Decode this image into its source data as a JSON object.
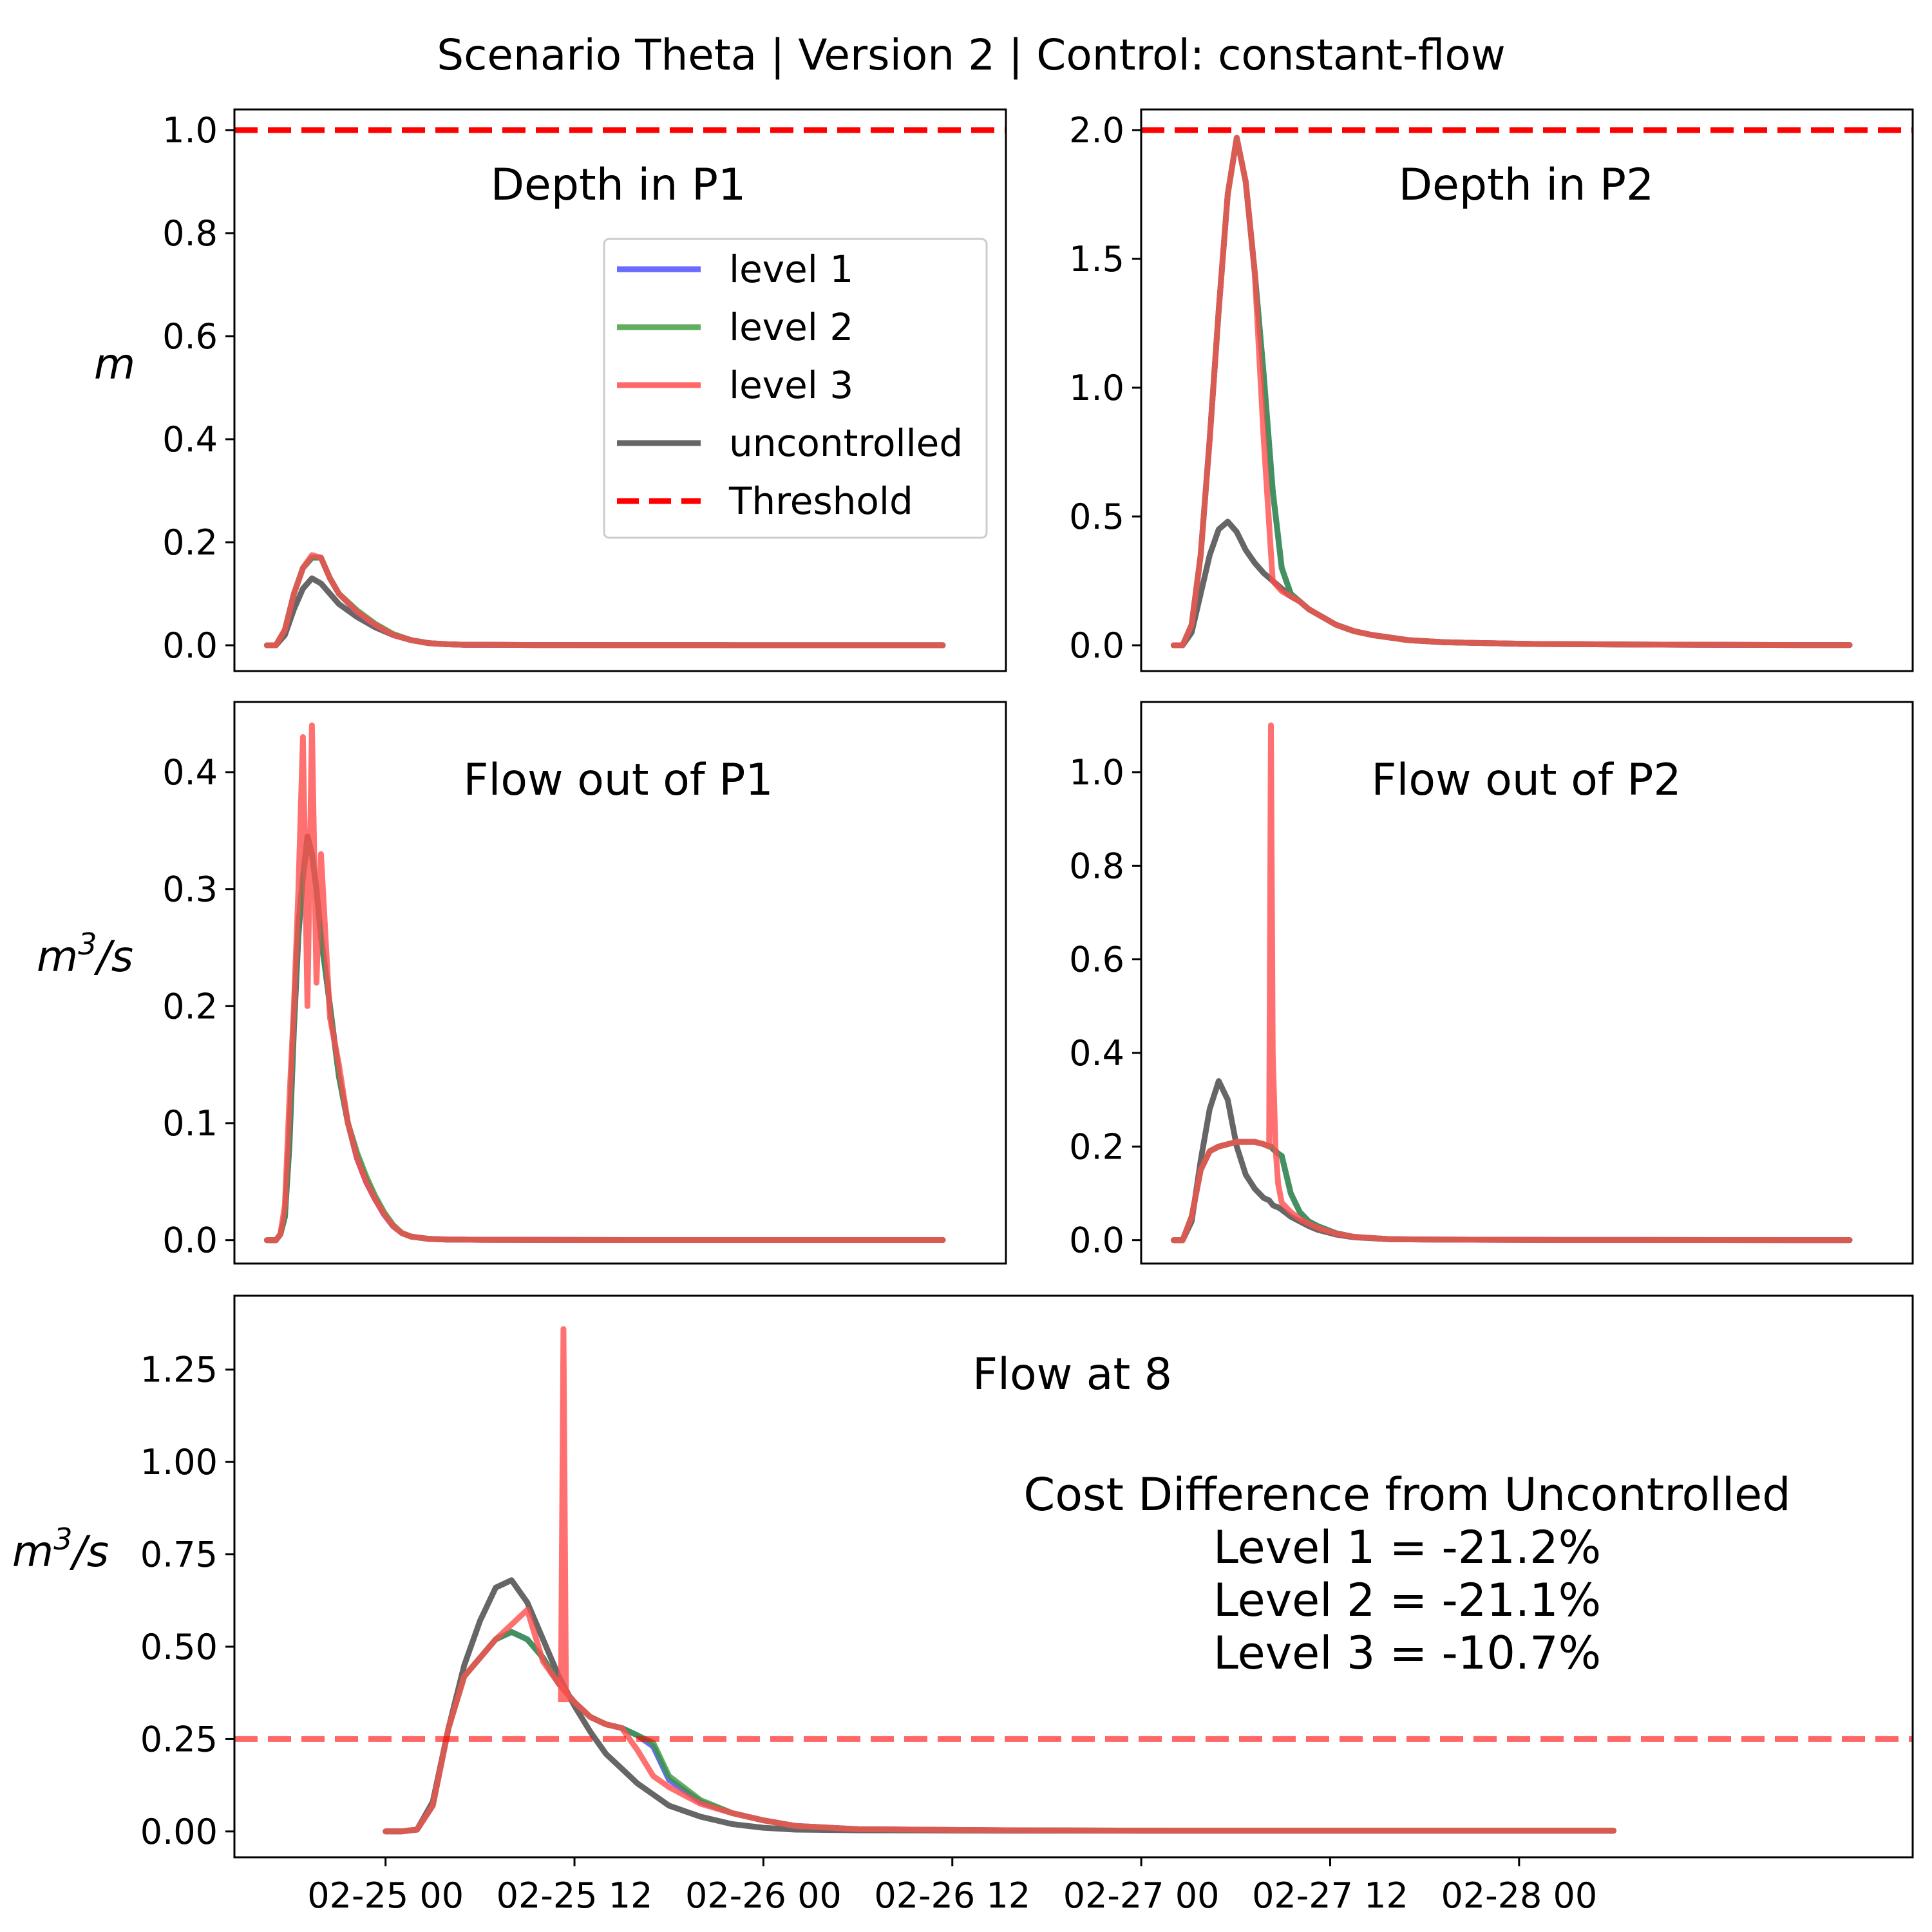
{
  "suptitle": "Scenario Theta | Version 2 | Control: constant-flow",
  "colors": {
    "level1": "#5b5bff",
    "level2": "#3a9a3a",
    "level3": "#ff4d4d",
    "uncontrolled": "#555555",
    "threshold": "#ff0000",
    "overlap_dark": "#8b1a1a"
  },
  "legend": {
    "placement": "upper-right of Depth in P1 panel",
    "entries": [
      "level 1",
      "level 2",
      "level 3",
      "uncontrolled",
      "Threshold"
    ]
  },
  "cost_text": {
    "header": "Cost Difference from Uncontrolled",
    "lines": [
      "Level 1 = -21.2%",
      "Level 2 = -21.1%",
      "Level 3 = -10.7%"
    ]
  },
  "chart_data": [
    {
      "id": "p1depth",
      "type": "line",
      "title": "Depth in P1",
      "ylabel": "m",
      "xlim_hours": [
        -3.6,
        82
      ],
      "ylim": [
        -0.05,
        1.04
      ],
      "yticks": [
        0.0,
        0.2,
        0.4,
        0.6,
        0.8,
        1.0
      ],
      "ytick_labels": [
        "0.0",
        "0.2",
        "0.4",
        "0.6",
        "0.8",
        "1.0"
      ],
      "threshold": 1.0,
      "x_hours": [
        0,
        1,
        2,
        3,
        4,
        5,
        6,
        7,
        8,
        10,
        12,
        14,
        16,
        18,
        20,
        22,
        24,
        30,
        40,
        50,
        60,
        70,
        75
      ],
      "series": [
        {
          "name": "uncontrolled",
          "values": [
            0,
            0,
            0.02,
            0.07,
            0.11,
            0.13,
            0.12,
            0.1,
            0.08,
            0.055,
            0.035,
            0.02,
            0.01,
            0.004,
            0.002,
            0.001,
            0.001,
            0.0005,
            0.0003,
            0.0002,
            0.0001,
            0.0001,
            0.0001
          ]
        },
        {
          "name": "level 1",
          "values": [
            0,
            0,
            0.03,
            0.1,
            0.15,
            0.17,
            0.17,
            0.13,
            0.1,
            0.065,
            0.04,
            0.02,
            0.01,
            0.004,
            0.002,
            0.001,
            0.001,
            0.0005,
            0.0003,
            0.0002,
            0.0001,
            0.0001,
            0.0001
          ]
        },
        {
          "name": "level 2",
          "values": [
            0,
            0,
            0.03,
            0.1,
            0.15,
            0.17,
            0.17,
            0.13,
            0.1,
            0.068,
            0.042,
            0.022,
            0.01,
            0.004,
            0.002,
            0.001,
            0.001,
            0.0005,
            0.0003,
            0.0002,
            0.0001,
            0.0001,
            0.0001
          ]
        },
        {
          "name": "level 3",
          "values": [
            0,
            0,
            0.03,
            0.1,
            0.15,
            0.175,
            0.17,
            0.13,
            0.1,
            0.065,
            0.04,
            0.02,
            0.01,
            0.004,
            0.002,
            0.001,
            0.001,
            0.0005,
            0.0003,
            0.0002,
            0.0001,
            0.0001,
            0.0001
          ]
        }
      ]
    },
    {
      "id": "p2depth",
      "type": "line",
      "title": "Depth in P2",
      "xlim_hours": [
        -3.6,
        82
      ],
      "ylim": [
        -0.1,
        2.08
      ],
      "yticks": [
        0.0,
        0.5,
        1.0,
        1.5,
        2.0
      ],
      "ytick_labels": [
        "0.0",
        "0.5",
        "1.0",
        "1.5",
        "2.0"
      ],
      "threshold": 2.0,
      "x_hours": [
        0,
        1,
        2,
        3,
        4,
        5,
        6,
        7,
        8,
        9,
        10,
        11,
        12,
        13,
        14,
        15,
        16,
        17,
        18,
        20,
        22,
        24,
        26,
        30,
        35,
        40,
        50,
        60,
        70,
        75
      ],
      "series": [
        {
          "name": "uncontrolled",
          "values": [
            0,
            0,
            0.05,
            0.2,
            0.35,
            0.45,
            0.48,
            0.44,
            0.37,
            0.32,
            0.28,
            0.25,
            0.22,
            0.19,
            0.17,
            0.14,
            0.12,
            0.1,
            0.08,
            0.055,
            0.04,
            0.03,
            0.02,
            0.012,
            0.008,
            0.005,
            0.003,
            0.002,
            0.001,
            0.001
          ]
        },
        {
          "name": "level 1",
          "values": [
            0,
            0,
            0.08,
            0.35,
            0.8,
            1.3,
            1.75,
            1.97,
            1.8,
            1.45,
            1.05,
            0.6,
            0.3,
            0.2,
            0.17,
            0.14,
            0.12,
            0.1,
            0.08,
            0.055,
            0.04,
            0.03,
            0.02,
            0.012,
            0.008,
            0.005,
            0.003,
            0.002,
            0.001,
            0.001
          ]
        },
        {
          "name": "level 2",
          "values": [
            0,
            0,
            0.08,
            0.35,
            0.8,
            1.3,
            1.75,
            1.97,
            1.8,
            1.45,
            1.05,
            0.6,
            0.3,
            0.2,
            0.17,
            0.14,
            0.12,
            0.1,
            0.08,
            0.055,
            0.04,
            0.03,
            0.02,
            0.012,
            0.008,
            0.005,
            0.003,
            0.002,
            0.001,
            0.001
          ]
        },
        {
          "name": "level 3",
          "values": [
            0,
            0,
            0.08,
            0.35,
            0.8,
            1.3,
            1.75,
            1.97,
            1.8,
            1.45,
            0.8,
            0.25,
            0.21,
            0.19,
            0.17,
            0.14,
            0.12,
            0.1,
            0.08,
            0.055,
            0.04,
            0.03,
            0.02,
            0.012,
            0.008,
            0.005,
            0.003,
            0.002,
            0.001,
            0.001
          ]
        }
      ]
    },
    {
      "id": "p1flow",
      "type": "line",
      "title": "Flow out of P1",
      "ylabel": "m³/s",
      "xlim_hours": [
        -3.6,
        82
      ],
      "ylim": [
        -0.02,
        0.46
      ],
      "yticks": [
        0.0,
        0.1,
        0.2,
        0.3,
        0.4
      ],
      "ytick_labels": [
        "0.0",
        "0.1",
        "0.2",
        "0.3",
        "0.4"
      ],
      "x_hours": [
        0,
        1,
        1.5,
        2,
        2.5,
        3,
        3.5,
        4,
        4.5,
        5,
        5.5,
        6,
        7,
        8,
        9,
        10,
        11,
        12,
        13,
        14,
        15,
        16,
        18,
        20,
        24,
        30,
        40,
        50,
        60,
        70,
        75
      ],
      "series": [
        {
          "name": "uncontrolled",
          "values": [
            0,
            0,
            0.005,
            0.02,
            0.08,
            0.18,
            0.26,
            0.31,
            0.345,
            0.33,
            0.3,
            0.26,
            0.2,
            0.14,
            0.1,
            0.07,
            0.05,
            0.035,
            0.022,
            0.012,
            0.006,
            0.003,
            0.001,
            0.0005,
            0.0003,
            0.0002,
            0.0001,
            0.0001,
            0.0001,
            0.0001,
            0.0001
          ]
        },
        {
          "name": "level 1",
          "values": [
            0,
            0,
            0.005,
            0.02,
            0.09,
            0.19,
            0.27,
            0.31,
            0.34,
            0.33,
            0.3,
            0.26,
            0.2,
            0.14,
            0.1,
            0.072,
            0.052,
            0.036,
            0.022,
            0.012,
            0.006,
            0.003,
            0.001,
            0.0005,
            0.0003,
            0.0002,
            0.0001,
            0.0001,
            0.0001,
            0.0001,
            0.0001
          ]
        },
        {
          "name": "level 2",
          "values": [
            0,
            0,
            0.005,
            0.02,
            0.09,
            0.19,
            0.27,
            0.31,
            0.34,
            0.33,
            0.3,
            0.26,
            0.2,
            0.14,
            0.1,
            0.075,
            0.055,
            0.038,
            0.024,
            0.013,
            0.006,
            0.003,
            0.001,
            0.0005,
            0.0003,
            0.0002,
            0.0001,
            0.0001,
            0.0001,
            0.0001,
            0.0001
          ]
        },
        {
          "name": "level 3",
          "values": [
            0,
            0,
            0.005,
            0.03,
            0.12,
            0.2,
            0.3,
            0.43,
            0.2,
            0.44,
            0.22,
            0.33,
            0.19,
            0.15,
            0.1,
            0.07,
            0.05,
            0.035,
            0.022,
            0.012,
            0.006,
            0.003,
            0.001,
            0.0005,
            0.0003,
            0.0002,
            0.0001,
            0.0001,
            0.0001,
            0.0001,
            0.0001
          ]
        }
      ]
    },
    {
      "id": "p2flow",
      "type": "line",
      "title": "Flow out of P2",
      "xlim_hours": [
        -3.6,
        82
      ],
      "ylim": [
        -0.05,
        1.15
      ],
      "yticks": [
        0.0,
        0.2,
        0.4,
        0.6,
        0.8,
        1.0
      ],
      "ytick_labels": [
        "0.0",
        "0.2",
        "0.4",
        "0.6",
        "0.8",
        "1.0"
      ],
      "x_hours": [
        0,
        1,
        2,
        3,
        4,
        5,
        6,
        7,
        8,
        9,
        10,
        10.6,
        10.8,
        11,
        11.3,
        11.6,
        12,
        13,
        14,
        15,
        16,
        18,
        20,
        24,
        30,
        40,
        50,
        60,
        70,
        75
      ],
      "series": [
        {
          "name": "uncontrolled",
          "values": [
            0,
            0,
            0.04,
            0.17,
            0.28,
            0.34,
            0.3,
            0.2,
            0.14,
            0.11,
            0.09,
            0.085,
            0.08,
            0.075,
            0.072,
            0.07,
            0.065,
            0.05,
            0.04,
            0.03,
            0.022,
            0.012,
            0.006,
            0.002,
            0.001,
            0.0005,
            0.0003,
            0.0002,
            0.0001,
            0.0001
          ]
        },
        {
          "name": "level 1",
          "values": [
            0,
            0,
            0.05,
            0.15,
            0.19,
            0.2,
            0.205,
            0.21,
            0.21,
            0.21,
            0.205,
            0.2,
            0.2,
            0.195,
            0.19,
            0.185,
            0.18,
            0.1,
            0.06,
            0.04,
            0.03,
            0.015,
            0.007,
            0.002,
            0.001,
            0.0005,
            0.0003,
            0.0002,
            0.0001,
            0.0001
          ]
        },
        {
          "name": "level 2",
          "values": [
            0,
            0,
            0.05,
            0.15,
            0.19,
            0.2,
            0.205,
            0.21,
            0.21,
            0.21,
            0.205,
            0.2,
            0.2,
            0.195,
            0.19,
            0.185,
            0.18,
            0.1,
            0.06,
            0.04,
            0.03,
            0.015,
            0.007,
            0.002,
            0.001,
            0.0005,
            0.0003,
            0.0002,
            0.0001,
            0.0001
          ]
        },
        {
          "name": "level 3",
          "values": [
            0,
            0,
            0.05,
            0.15,
            0.19,
            0.2,
            0.205,
            0.21,
            0.21,
            0.21,
            0.205,
            0.2,
            1.1,
            0.4,
            0.2,
            0.12,
            0.08,
            0.06,
            0.045,
            0.035,
            0.026,
            0.014,
            0.007,
            0.002,
            0.001,
            0.0005,
            0.0003,
            0.0002,
            0.0001,
            0.0001
          ]
        }
      ]
    },
    {
      "id": "flow8",
      "type": "line",
      "title": "Flow at 8",
      "ylabel": "m³/s",
      "xlim_hours": [
        -9.6,
        97
      ],
      "xticks_hours": [
        0,
        12,
        24,
        36,
        48,
        60,
        72
      ],
      "xtick_labels": [
        "02-25 00",
        "02-25 12",
        "02-26 00",
        "02-26 12",
        "02-27 00",
        "02-27 12",
        "02-28 00"
      ],
      "ylim": [
        -0.07,
        1.45
      ],
      "yticks": [
        0.0,
        0.25,
        0.5,
        0.75,
        1.0,
        1.25
      ],
      "ytick_labels": [
        "0.00",
        "0.25",
        "0.50",
        "0.75",
        "1.00",
        "1.25"
      ],
      "threshold": 0.25,
      "x_hours": [
        0,
        1,
        2,
        3,
        4,
        5,
        6,
        7,
        8,
        9,
        10,
        11,
        12,
        13,
        14,
        15,
        16,
        17,
        18,
        20,
        22,
        24,
        26,
        30,
        40,
        50,
        60,
        70,
        78
      ],
      "series": [
        {
          "name": "uncontrolled",
          "values": [
            0,
            0,
            0.005,
            0.08,
            0.28,
            0.45,
            0.57,
            0.66,
            0.68,
            0.62,
            0.52,
            0.42,
            0.34,
            0.27,
            0.21,
            0.17,
            0.13,
            0.1,
            0.07,
            0.04,
            0.02,
            0.01,
            0.005,
            0.003,
            0.002,
            0.002,
            0.002,
            0.002,
            0.002
          ]
        },
        {
          "name": "level 1",
          "values": [
            0,
            0,
            0.005,
            0.07,
            0.28,
            0.42,
            0.47,
            0.52,
            0.54,
            0.52,
            0.47,
            0.4,
            0.35,
            0.31,
            0.29,
            0.28,
            0.26,
            0.23,
            0.14,
            0.08,
            0.05,
            0.03,
            0.015,
            0.006,
            0.003,
            0.002,
            0.002,
            0.002,
            0.002
          ]
        },
        {
          "name": "level 2",
          "values": [
            0,
            0,
            0.005,
            0.07,
            0.28,
            0.42,
            0.47,
            0.52,
            0.54,
            0.52,
            0.47,
            0.4,
            0.35,
            0.31,
            0.29,
            0.28,
            0.26,
            0.24,
            0.15,
            0.085,
            0.05,
            0.03,
            0.015,
            0.006,
            0.003,
            0.002,
            0.002,
            0.002,
            0.002
          ]
        },
        {
          "name": "level 3",
          "values": [
            0,
            0,
            0.005,
            0.07,
            0.28,
            0.42,
            0.47,
            0.52,
            0.56,
            0.6,
            0.46,
            0.4,
            0.35,
            0.31,
            0.29,
            0.28,
            0.22,
            0.15,
            0.12,
            0.075,
            0.05,
            0.03,
            0.015,
            0.006,
            0.003,
            0.002,
            0.002,
            0.002,
            0.002
          ]
        }
      ],
      "spike_level3": {
        "x_hours": 11.3,
        "value": 1.36
      }
    }
  ]
}
